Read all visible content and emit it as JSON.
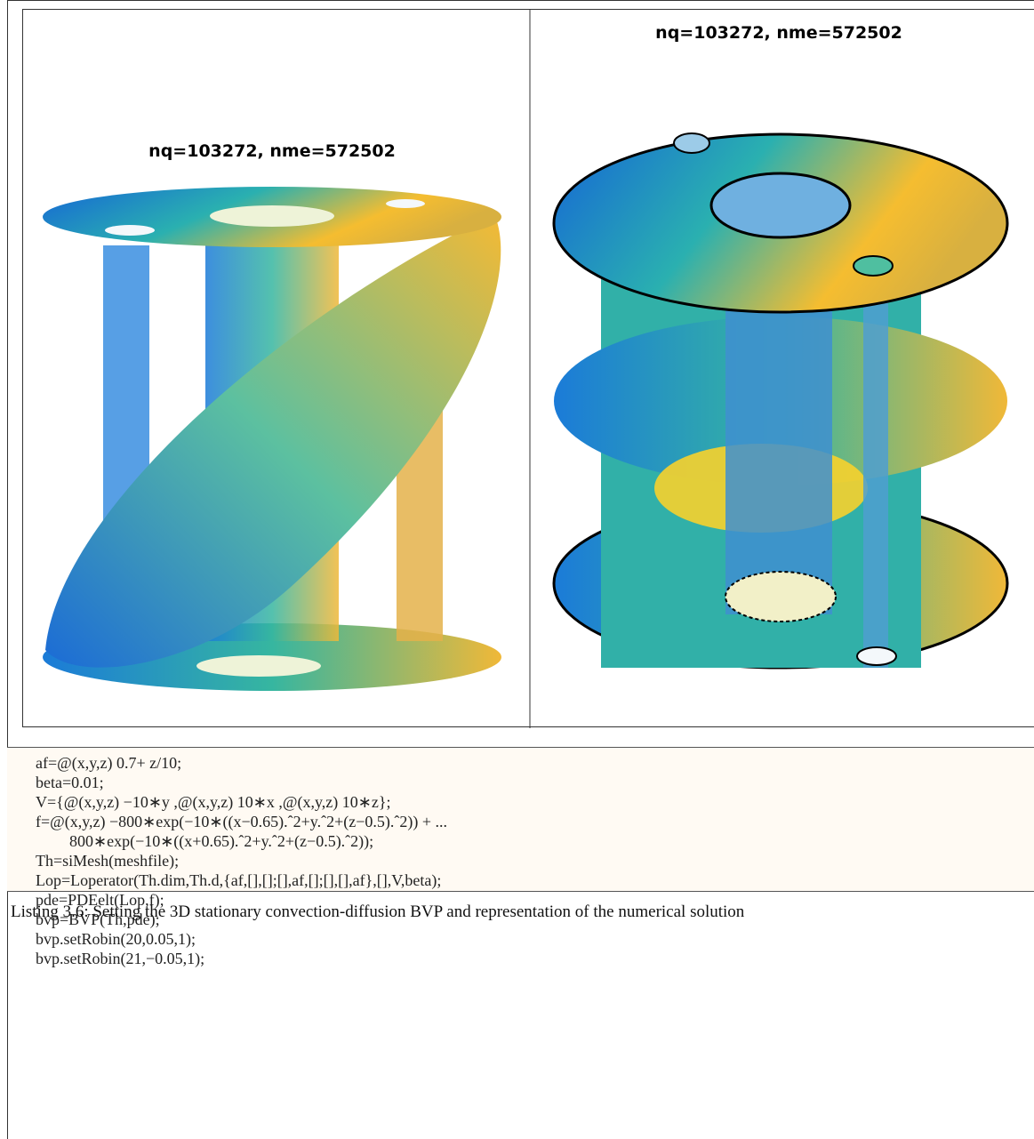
{
  "figure": {
    "left_title": "nq=103272, nme=572502",
    "right_title": "nq=103272, nme=572502"
  },
  "code": {
    "lines": [
      "af=@(x,y,z) 0.7+ z/10;",
      "beta=0.01;",
      "V={@(x,y,z) −10∗y ,@(x,y,z) 10∗x ,@(x,y,z) 10∗z};",
      "f=@(x,y,z) −800∗exp(−10∗((x−0.65).ˆ2+y.ˆ2+(z−0.5).ˆ2)) + ...",
      "800∗exp(−10∗((x+0.65).ˆ2+y.ˆ2+(z−0.5).ˆ2));",
      "Th=siMesh(meshfile);",
      "Lop=Loperator(Th.dim,Th.d,{af,[],[];[],af,[];[],[],af},[],V,beta);",
      "pde=PDEelt(Lop,f);",
      "bvp=BVP(Th,pde);",
      "bvp.setRobin(20,0.05,1);",
      "bvp.setRobin(21,−0.05,1);"
    ]
  },
  "caption": "Listing 3.6: Setting the 3D stationary convection-diffusion BVP and representation of the numerical solution"
}
